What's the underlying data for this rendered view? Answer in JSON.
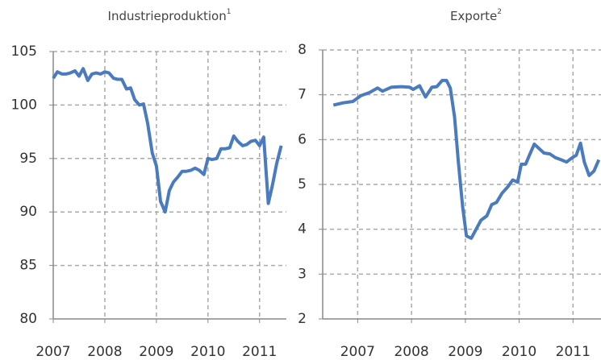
{
  "chart_data": [
    {
      "type": "line",
      "title": "Industrieproduktion",
      "title_note": "1",
      "x": [
        2007.0,
        2007.08,
        2007.17,
        2007.25,
        2007.33,
        2007.42,
        2007.5,
        2007.58,
        2007.67,
        2007.75,
        2007.83,
        2007.92,
        2008.0,
        2008.08,
        2008.17,
        2008.25,
        2008.33,
        2008.42,
        2008.5,
        2008.58,
        2008.67,
        2008.75,
        2008.83,
        2008.92,
        2009.0,
        2009.08,
        2009.17,
        2009.25,
        2009.33,
        2009.42,
        2009.5,
        2009.58,
        2009.67,
        2009.75,
        2009.83,
        2009.92,
        2010.0,
        2010.08,
        2010.17,
        2010.25,
        2010.33,
        2010.42,
        2010.5,
        2010.58,
        2010.67,
        2010.75,
        2010.83,
        2010.92,
        2011.0,
        2011.08,
        2011.17,
        2011.25,
        2011.33,
        2011.42
      ],
      "series": [
        {
          "color": "#4a7bbf",
          "values": [
            102.5,
            103.1,
            102.9,
            102.9,
            103.0,
            103.2,
            102.7,
            103.4,
            102.3,
            102.9,
            103.0,
            102.9,
            103.1,
            103.0,
            102.5,
            102.4,
            102.4,
            101.5,
            101.6,
            100.5,
            100.0,
            100.1,
            98.3,
            95.5,
            94.3,
            91.0,
            90.0,
            92.0,
            92.8,
            93.3,
            93.8,
            93.8,
            93.9,
            94.1,
            93.9,
            93.5,
            95.0,
            94.9,
            95.0,
            95.9,
            95.9,
            96.0,
            97.1,
            96.6,
            96.2,
            96.3,
            96.6,
            96.7,
            96.2,
            97.0,
            90.8,
            92.5,
            94.5,
            96.2
          ]
        }
      ],
      "xlim": [
        2007,
        2011.52
      ],
      "xticks": [
        2007,
        2008,
        2009,
        2010,
        2011
      ],
      "ylim": [
        80,
        105
      ],
      "yticks": [
        80,
        85,
        90,
        95,
        100,
        105
      ],
      "grid": true
    },
    {
      "type": "line",
      "title": "Exporte",
      "title_note": "2",
      "x": [
        2006.55,
        2006.73,
        2006.91,
        2007.06,
        2007.22,
        2007.37,
        2007.46,
        2007.63,
        2007.81,
        2007.96,
        2008.03,
        2008.15,
        2008.26,
        2008.38,
        2008.47,
        2008.57,
        2008.65,
        2008.72,
        2008.8,
        2008.87,
        2008.95,
        2009.02,
        2009.11,
        2009.2,
        2009.29,
        2009.4,
        2009.49,
        2009.58,
        2009.68,
        2009.79,
        2009.88,
        2009.97,
        2010.04,
        2010.12,
        2010.19,
        2010.28,
        2010.37,
        2010.46,
        2010.57,
        2010.67,
        2010.78,
        2010.88,
        2010.99,
        2011.06,
        2011.14,
        2011.21,
        2011.3,
        2011.39,
        2011.48
      ],
      "series": [
        {
          "color": "#4a7bbf",
          "values": [
            6.77,
            6.82,
            6.85,
            6.98,
            7.05,
            7.15,
            7.08,
            7.17,
            7.18,
            7.17,
            7.12,
            7.2,
            6.95,
            7.17,
            7.18,
            7.32,
            7.32,
            7.15,
            6.5,
            5.5,
            4.5,
            3.85,
            3.8,
            4.0,
            4.2,
            4.3,
            4.55,
            4.6,
            4.8,
            4.95,
            5.1,
            5.05,
            5.45,
            5.45,
            5.65,
            5.9,
            5.8,
            5.7,
            5.68,
            5.6,
            5.55,
            5.5,
            5.6,
            5.65,
            5.92,
            5.5,
            5.2,
            5.3,
            5.55
          ]
        }
      ],
      "xlim": [
        2006.35,
        2011.52
      ],
      "xticks": [
        2007,
        2008,
        2009,
        2010,
        2011
      ],
      "ylim": [
        2,
        8
      ],
      "yticks": [
        2,
        3,
        4,
        5,
        6,
        7,
        8
      ],
      "grid": true
    }
  ]
}
